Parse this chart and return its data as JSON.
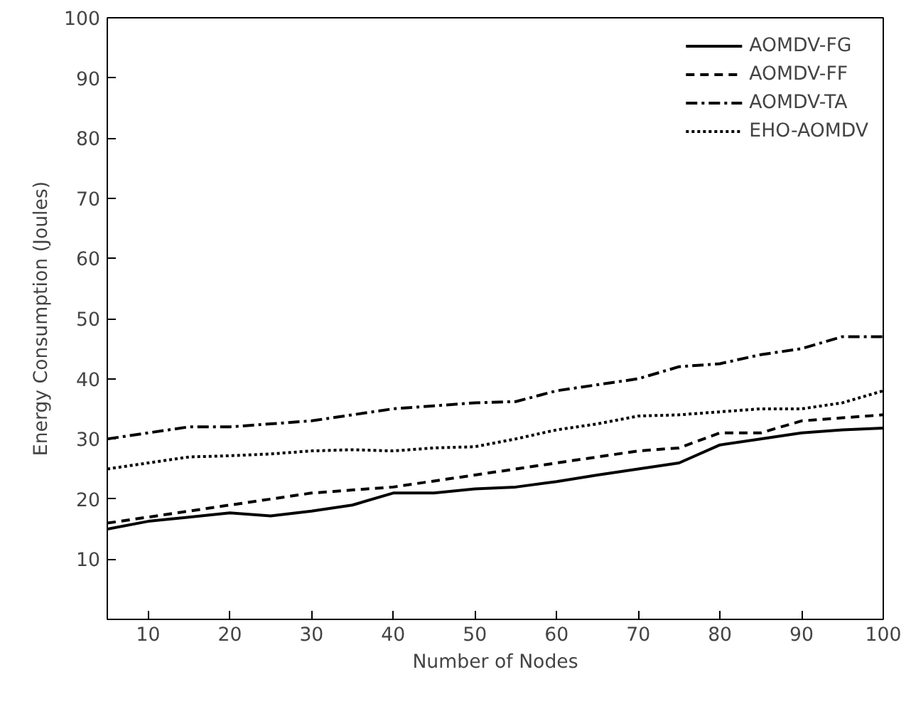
{
  "chart_data": {
    "type": "line",
    "xlabel": "Number of Nodes",
    "ylabel": "Energy Consumption (Joules)",
    "x": [
      5,
      10,
      15,
      20,
      25,
      30,
      35,
      40,
      45,
      50,
      55,
      60,
      65,
      70,
      75,
      80,
      85,
      90,
      95,
      100
    ],
    "xlim": [
      5,
      100
    ],
    "xticks": [
      10,
      20,
      30,
      40,
      50,
      60,
      70,
      80,
      90,
      100
    ],
    "ylim": [
      0,
      100
    ],
    "yticks": [
      10,
      20,
      30,
      40,
      50,
      60,
      70,
      80,
      90,
      100
    ],
    "grid": false,
    "legend": "top right",
    "marker": "none",
    "series": [
      {
        "name": "AOMDV-FG",
        "color": "#000000",
        "line_style": "solid",
        "values": [
          15,
          16.3,
          17,
          17.7,
          17.2,
          18,
          19,
          21,
          21,
          21.7,
          22,
          22.9,
          24,
          25,
          26,
          29,
          30,
          31,
          31.5,
          31.8
        ]
      },
      {
        "name": "AOMDV-FF",
        "color": "#000000",
        "line_style": "dashed",
        "values": [
          16,
          17,
          18,
          19,
          20,
          21,
          21.5,
          22,
          23,
          24,
          25,
          26,
          27,
          28,
          28.5,
          31,
          31,
          33,
          33.5,
          34
        ]
      },
      {
        "name": "AOMDV-TA",
        "color": "#000000",
        "line_style": "dashdot",
        "values": [
          30,
          31,
          32,
          32,
          32.5,
          33,
          34,
          35,
          35.5,
          36,
          36.2,
          38,
          39,
          40,
          42,
          42.5,
          44,
          45,
          47,
          47
        ]
      },
      {
        "name": "EHO-AOMDV",
        "color": "#000000",
        "line_style": "dotted",
        "values": [
          25,
          26,
          27,
          27.2,
          27.5,
          28,
          28.2,
          28,
          28.5,
          28.7,
          30,
          31.5,
          32.5,
          33.8,
          34,
          34.5,
          35,
          35,
          36,
          38
        ]
      }
    ]
  }
}
